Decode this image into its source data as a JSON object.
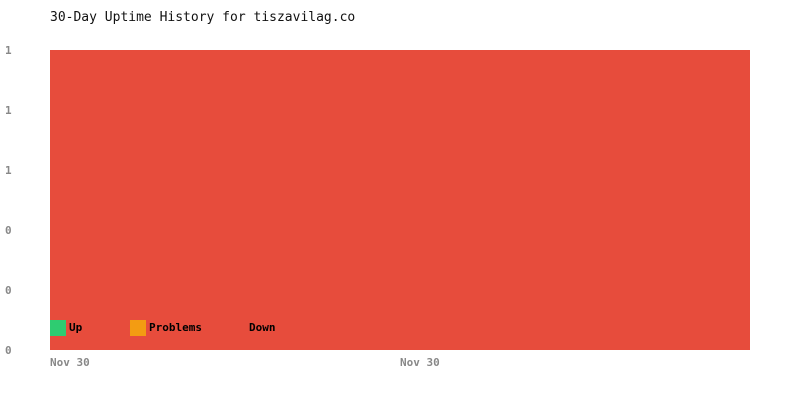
{
  "chart_data": {
    "type": "area",
    "stacked": true,
    "title": "30-Day Uptime History for tiszavilag.co",
    "x": [
      "Nov 30",
      "Nov 30"
    ],
    "x_tick_labels": [
      "Nov 30",
      "Nov 30"
    ],
    "y_tick_labels": [
      "1",
      "1",
      "1",
      "0",
      "0",
      "0"
    ],
    "ylim": [
      0,
      1
    ],
    "grid": false,
    "legend_placement": "bottom-left",
    "series": [
      {
        "name": "Up",
        "color": "#2ecc71",
        "values": [
          0,
          0
        ]
      },
      {
        "name": "Problems",
        "color": "#f39c12",
        "values": [
          0,
          0
        ]
      },
      {
        "name": "Down",
        "color": "#e74c3c",
        "values": [
          1,
          1
        ]
      }
    ]
  }
}
